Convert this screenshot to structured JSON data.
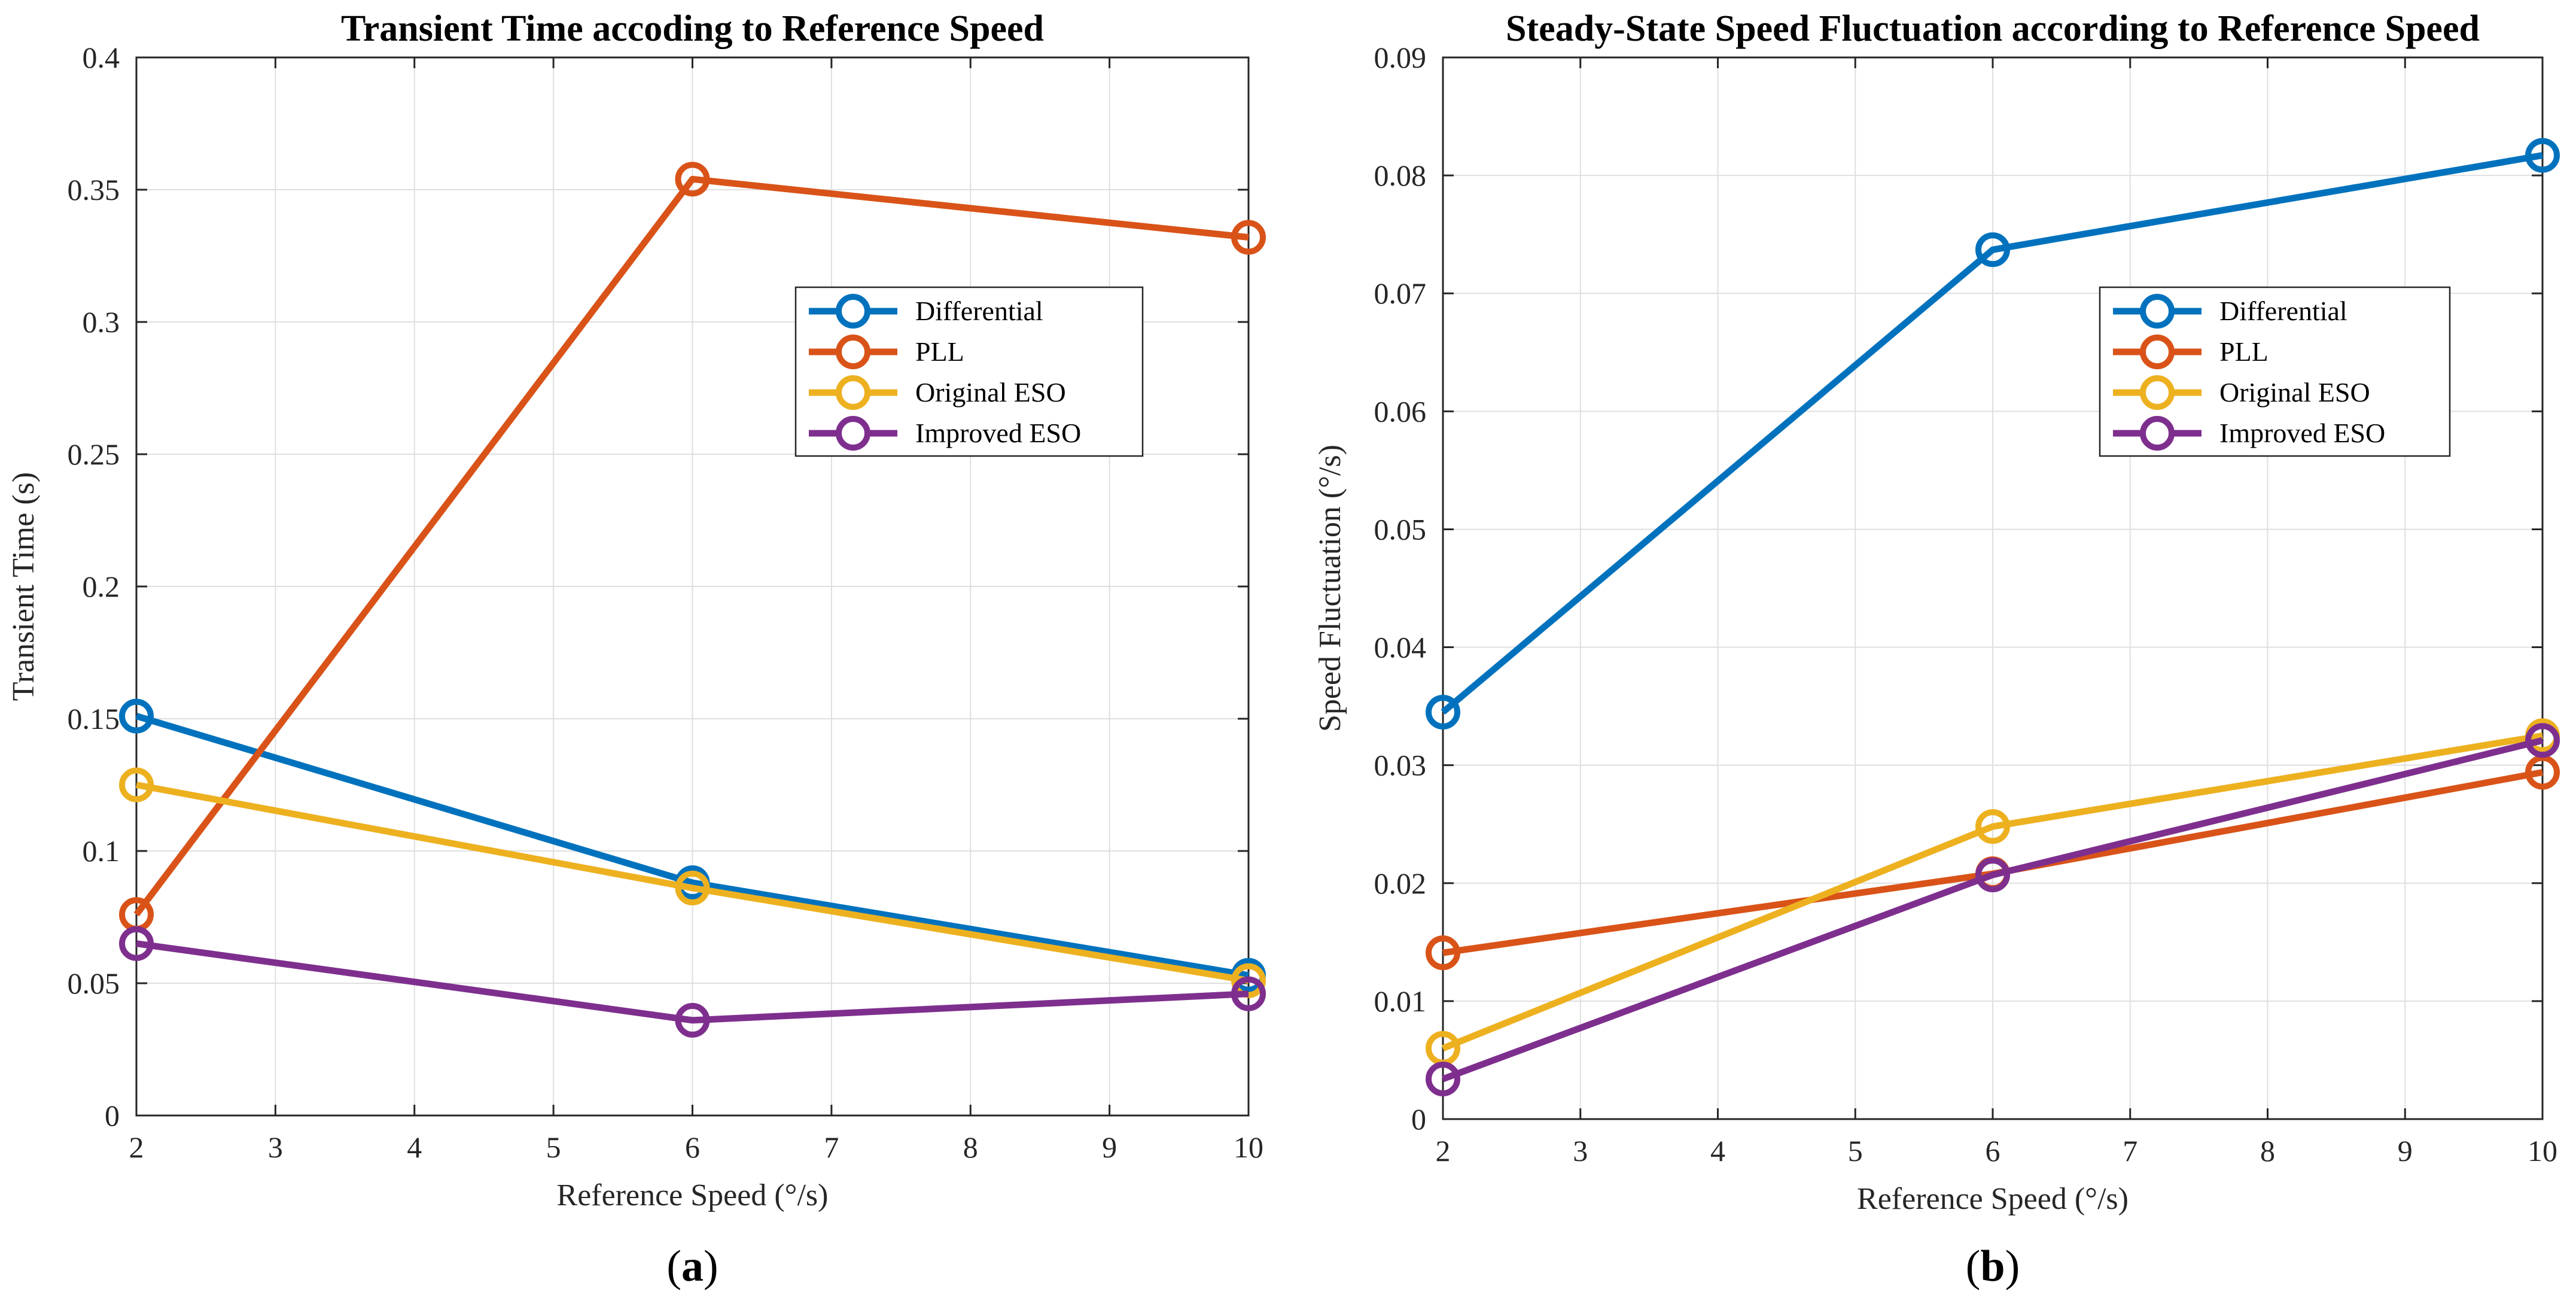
{
  "colors": {
    "Differential": "#0072BD",
    "PLL": "#D95319",
    "Original ESO": "#EDB120",
    "Improved ESO": "#7E2F8E",
    "grid": "#DFDFDF",
    "axis": "#262626"
  },
  "chart_data": [
    {
      "type": "line",
      "panel_label": "a",
      "title": "Transient Time accoding to Reference Speed",
      "xlabel": "Reference Speed (°/s)",
      "ylabel": "Transient Time (s)",
      "xlim": [
        2,
        10
      ],
      "ylim": [
        0,
        0.4
      ],
      "xticks": [
        2,
        3,
        4,
        5,
        6,
        7,
        8,
        9,
        10
      ],
      "xtick_labels": [
        "2",
        "3",
        "4",
        "5",
        "6",
        "7",
        "8",
        "9",
        "10"
      ],
      "yticks": [
        0,
        0.05,
        0.1,
        0.15,
        0.2,
        0.25,
        0.3,
        0.35,
        0.4
      ],
      "ytick_labels": [
        "0",
        "0.05",
        "0.1",
        "0.15",
        "0.2",
        "0.25",
        "0.3",
        "0.35",
        "0.4"
      ],
      "grid": true,
      "legend_position": "upper-right",
      "x": [
        2,
        6,
        10
      ],
      "series": [
        {
          "name": "Differential",
          "values": [
            0.151,
            0.088,
            0.053
          ]
        },
        {
          "name": "PLL",
          "values": [
            0.076,
            0.354,
            0.332
          ]
        },
        {
          "name": "Original ESO",
          "values": [
            0.125,
            0.086,
            0.051
          ]
        },
        {
          "name": "Improved ESO",
          "values": [
            0.065,
            0.036,
            0.046
          ]
        }
      ]
    },
    {
      "type": "line",
      "panel_label": "b",
      "title": "Steady-State Speed Fluctuation according to Reference Speed",
      "xlabel": "Reference Speed (°/s)",
      "ylabel": "Speed Fluctuation (°/s)",
      "xlim": [
        2,
        10
      ],
      "ylim": [
        0,
        0.09
      ],
      "xticks": [
        2,
        3,
        4,
        5,
        6,
        7,
        8,
        9,
        10
      ],
      "xtick_labels": [
        "2",
        "3",
        "4",
        "5",
        "6",
        "7",
        "8",
        "9",
        "10"
      ],
      "yticks": [
        0,
        0.01,
        0.02,
        0.03,
        0.04,
        0.05,
        0.06,
        0.07,
        0.08,
        0.09
      ],
      "ytick_labels": [
        "0",
        "0.01",
        "0.02",
        "0.03",
        "0.04",
        "0.05",
        "0.06",
        "0.07",
        "0.08",
        "0.09"
      ],
      "grid": true,
      "legend_position": "upper-right",
      "x": [
        2,
        6,
        10
      ],
      "series": [
        {
          "name": "Differential",
          "values": [
            0.0345,
            0.0737,
            0.0817
          ]
        },
        {
          "name": "PLL",
          "values": [
            0.0141,
            0.0208,
            0.0294
          ]
        },
        {
          "name": "Original ESO",
          "values": [
            0.006,
            0.0248,
            0.0325
          ]
        },
        {
          "name": "Improved ESO",
          "values": [
            0.0034,
            0.0207,
            0.0321
          ]
        }
      ]
    }
  ]
}
